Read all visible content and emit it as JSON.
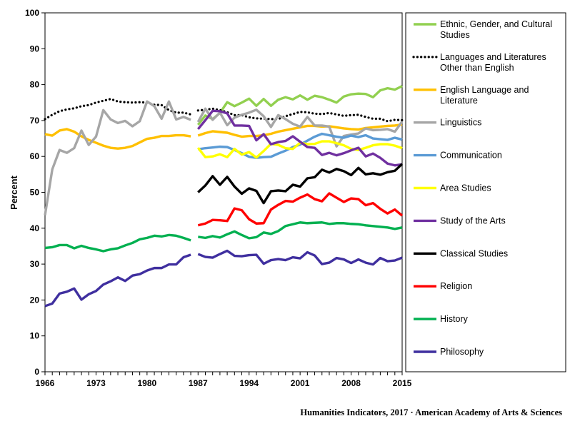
{
  "footer": "Humanities Indicators, 2017 · American Academy of Arts & Sciences",
  "chart_data": {
    "type": "line",
    "title": "",
    "xlabel": "",
    "ylabel": "Percent",
    "xlim": [
      1966,
      2015
    ],
    "ylim": [
      0,
      100
    ],
    "x_ticks": [
      1966,
      1973,
      1980,
      1987,
      1994,
      2001,
      2008,
      2015
    ],
    "y_ticks": [
      0,
      10,
      20,
      30,
      40,
      50,
      60,
      70,
      80,
      90,
      100
    ],
    "grid": false,
    "legend_position": "right",
    "series_break": [
      1986,
      1987
    ],
    "series": [
      {
        "name": "Ethnic, Gender, and Cultural Studies",
        "color": "#92d050",
        "dash": false,
        "x": [
          1987,
          1988,
          1989,
          1990,
          1991,
          1992,
          1993,
          1994,
          1995,
          1996,
          1997,
          1998,
          1999,
          2000,
          2001,
          2002,
          2003,
          2004,
          2005,
          2006,
          2007,
          2008,
          2009,
          2010,
          2011,
          2012,
          2013,
          2014,
          2015
        ],
        "y": [
          68.8,
          71.4,
          70.4,
          72.1,
          75.1,
          74.0,
          75.0,
          76.1,
          74.1,
          76.0,
          74.1,
          75.8,
          76.5,
          75.9,
          77.0,
          75.8,
          76.9,
          76.5,
          75.8,
          75.0,
          76.7,
          77.3,
          77.5,
          77.4,
          76.5,
          78.4,
          79.0,
          78.6,
          79.6
        ]
      },
      {
        "name": "Languages and Literatures Other than English",
        "color": "#000000",
        "dash": true,
        "x": [
          1966,
          1967,
          1968,
          1969,
          1970,
          1971,
          1972,
          1973,
          1974,
          1975,
          1976,
          1977,
          1978,
          1979,
          1980,
          1981,
          1982,
          1983,
          1984,
          1985,
          1986,
          1987,
          1988,
          1989,
          1990,
          1991,
          1992,
          1993,
          1994,
          1995,
          1996,
          1997,
          1998,
          1999,
          2000,
          2001,
          2002,
          2003,
          2004,
          2005,
          2006,
          2007,
          2008,
          2009,
          2010,
          2011,
          2012,
          2013,
          2014,
          2015
        ],
        "y": [
          70.4,
          71.6,
          72.6,
          73.1,
          73.4,
          74.0,
          74.3,
          75.0,
          75.5,
          76.0,
          75.3,
          75.1,
          75.0,
          75.1,
          75.0,
          74.4,
          74.3,
          72.9,
          72.2,
          72.2,
          71.7,
          72.8,
          73.0,
          73.3,
          72.9,
          72.3,
          71.5,
          71.5,
          70.9,
          70.6,
          70.5,
          70.4,
          70.4,
          71.2,
          71.8,
          72.4,
          72.3,
          71.9,
          71.8,
          72.1,
          71.7,
          71.3,
          71.5,
          71.6,
          71.0,
          70.5,
          70.5,
          69.8,
          70.2,
          70.1
        ]
      },
      {
        "name": "English Language and Literature",
        "color": "#ffc000",
        "dash": false,
        "x": [
          1966,
          1967,
          1968,
          1969,
          1970,
          1971,
          1972,
          1973,
          1974,
          1975,
          1976,
          1977,
          1978,
          1979,
          1980,
          1981,
          1982,
          1983,
          1984,
          1985,
          1986,
          1987,
          1988,
          1989,
          1990,
          1991,
          1992,
          1993,
          1994,
          1995,
          1996,
          1997,
          1998,
          1999,
          2000,
          2001,
          2002,
          2003,
          2004,
          2005,
          2006,
          2007,
          2008,
          2009,
          2010,
          2011,
          2012,
          2013,
          2014,
          2015
        ],
        "y": [
          66.2,
          65.8,
          67.2,
          67.6,
          66.9,
          65.6,
          64.6,
          63.8,
          63.0,
          62.4,
          62.2,
          62.4,
          62.9,
          63.9,
          64.9,
          65.2,
          65.7,
          65.7,
          65.9,
          65.9,
          65.6,
          65.8,
          66.5,
          67.0,
          66.8,
          66.6,
          66.0,
          65.5,
          65.7,
          65.7,
          65.9,
          66.3,
          66.9,
          67.3,
          67.7,
          68.1,
          68.5,
          68.5,
          68.3,
          68.4,
          68.1,
          67.8,
          67.6,
          67.5,
          67.9,
          68.1,
          68.3,
          68.5,
          68.6,
          68.9
        ]
      },
      {
        "name": "Linguistics",
        "color": "#a6a6a6",
        "dash": false,
        "x": [
          1966,
          1967,
          1968,
          1969,
          1970,
          1971,
          1972,
          1973,
          1974,
          1975,
          1976,
          1977,
          1978,
          1979,
          1980,
          1981,
          1982,
          1983,
          1984,
          1985,
          1986,
          1987,
          1988,
          1989,
          1990,
          1991,
          1992,
          1993,
          1994,
          1995,
          1996,
          1997,
          1998,
          1999,
          2000,
          2001,
          2002,
          2003,
          2004,
          2005,
          2006,
          2007,
          2008,
          2009,
          2010,
          2011,
          2012,
          2013,
          2014,
          2015
        ],
        "y": [
          43.6,
          56.4,
          61.8,
          61.0,
          62.3,
          67.2,
          63.2,
          65.5,
          72.9,
          70.3,
          69.3,
          69.9,
          68.4,
          69.8,
          75.3,
          74.0,
          70.5,
          75.3,
          70.3,
          71.0,
          70.2,
          69.6,
          73.3,
          70.2,
          72.2,
          68.7,
          70.8,
          71.6,
          72.2,
          73.0,
          71.2,
          68.2,
          71.5,
          70.4,
          69.1,
          68.3,
          71.0,
          68.6,
          68.6,
          68.3,
          62.8,
          65.7,
          66.1,
          66.4,
          67.8,
          67.3,
          67.4,
          67.6,
          66.9,
          69.7
        ]
      },
      {
        "name": "Communication",
        "color": "#5b9bd5",
        "dash": false,
        "x": [
          1987,
          1988,
          1989,
          1990,
          1991,
          1992,
          1993,
          1994,
          1995,
          1996,
          1997,
          1998,
          1999,
          2000,
          2001,
          2002,
          2003,
          2004,
          2005,
          2006,
          2007,
          2008,
          2009,
          2010,
          2011,
          2012,
          2013,
          2014,
          2015
        ],
        "y": [
          62.0,
          62.3,
          62.5,
          62.7,
          62.6,
          61.8,
          60.9,
          59.9,
          59.6,
          59.8,
          59.9,
          60.8,
          61.6,
          62.6,
          63.3,
          64.4,
          65.5,
          66.3,
          65.9,
          65.5,
          65.2,
          65.8,
          65.4,
          65.9,
          65.0,
          64.8,
          64.6,
          65.2,
          64.7
        ]
      },
      {
        "name": "Area Studies",
        "color": "#ffff00",
        "dash": false,
        "x": [
          1987,
          1988,
          1989,
          1990,
          1991,
          1992,
          1993,
          1994,
          1995,
          1996,
          1997,
          1998,
          1999,
          2000,
          2001,
          2002,
          2003,
          2004,
          2005,
          2006,
          2007,
          2008,
          2009,
          2010,
          2011,
          2012,
          2013,
          2014,
          2015
        ],
        "y": [
          62.4,
          59.8,
          60.0,
          60.6,
          59.8,
          62.1,
          60.5,
          61.2,
          59.7,
          61.5,
          63.5,
          63.2,
          62.3,
          62.1,
          63.8,
          63.4,
          63.5,
          64.2,
          64.2,
          63.7,
          63.1,
          62.1,
          61.8,
          62.4,
          63.1,
          63.4,
          63.4,
          63.0,
          62.3
        ]
      },
      {
        "name": "Study of the Arts",
        "color": "#7030a0",
        "dash": false,
        "x": [
          1987,
          1988,
          1989,
          1990,
          1991,
          1992,
          1993,
          1994,
          1995,
          1996,
          1997,
          1998,
          1999,
          2000,
          2001,
          2002,
          2003,
          2004,
          2005,
          2006,
          2007,
          2008,
          2009,
          2010,
          2011,
          2012,
          2013,
          2014,
          2015
        ],
        "y": [
          67.6,
          70.1,
          72.7,
          72.6,
          72.0,
          68.6,
          68.6,
          68.5,
          64.5,
          66.2,
          63.4,
          64.0,
          64.3,
          65.6,
          64.1,
          62.6,
          62.4,
          60.4,
          61.0,
          60.3,
          60.9,
          61.7,
          62.4,
          60.0,
          60.8,
          59.6,
          58.0,
          57.5,
          57.8
        ]
      },
      {
        "name": "Classical Studies",
        "color": "#000000",
        "dash": false,
        "x": [
          1987,
          1988,
          1989,
          1990,
          1991,
          1992,
          1993,
          1994,
          1995,
          1996,
          1997,
          1998,
          1999,
          2000,
          2001,
          2002,
          2003,
          2004,
          2005,
          2006,
          2007,
          2008,
          2009,
          2010,
          2011,
          2012,
          2013,
          2014,
          2015
        ],
        "y": [
          50.0,
          51.9,
          54.5,
          52.1,
          54.3,
          51.6,
          49.6,
          51.1,
          50.4,
          47.0,
          50.3,
          50.5,
          50.3,
          52.1,
          51.6,
          53.9,
          54.2,
          56.3,
          55.5,
          56.5,
          55.9,
          54.8,
          56.8,
          55.0,
          55.3,
          54.9,
          55.6,
          56.0,
          57.9
        ]
      },
      {
        "name": "Religion",
        "color": "#ff0000",
        "dash": false,
        "x": [
          1987,
          1988,
          1989,
          1990,
          1991,
          1992,
          1993,
          1994,
          1995,
          1996,
          1997,
          1998,
          1999,
          2000,
          2001,
          2002,
          2003,
          2004,
          2005,
          2006,
          2007,
          2008,
          2009,
          2010,
          2011,
          2012,
          2013,
          2014,
          2015
        ],
        "y": [
          40.8,
          41.3,
          42.3,
          42.2,
          42.0,
          45.5,
          45.0,
          42.5,
          41.3,
          41.4,
          45.2,
          46.5,
          47.6,
          47.4,
          48.5,
          49.4,
          48.1,
          47.5,
          49.7,
          48.5,
          47.3,
          48.3,
          48.1,
          46.4,
          47.0,
          45.4,
          44.1,
          45.2,
          43.5
        ]
      },
      {
        "name": "History",
        "color": "#00b050",
        "dash": false,
        "x": [
          1966,
          1967,
          1968,
          1969,
          1970,
          1971,
          1972,
          1973,
          1974,
          1975,
          1976,
          1977,
          1978,
          1979,
          1980,
          1981,
          1982,
          1983,
          1984,
          1985,
          1986,
          1987,
          1988,
          1989,
          1990,
          1991,
          1992,
          1993,
          1994,
          1995,
          1996,
          1997,
          1998,
          1999,
          2000,
          2001,
          2002,
          2003,
          2004,
          2005,
          2006,
          2007,
          2008,
          2009,
          2010,
          2011,
          2012,
          2013,
          2014,
          2015
        ],
        "y": [
          34.5,
          34.7,
          35.3,
          35.3,
          34.4,
          35.1,
          34.5,
          34.1,
          33.6,
          34.1,
          34.4,
          35.2,
          35.9,
          36.9,
          37.3,
          37.9,
          37.7,
          38.1,
          37.9,
          37.3,
          36.6,
          37.6,
          37.3,
          37.8,
          37.4,
          38.3,
          39.1,
          38.1,
          37.2,
          37.5,
          38.8,
          38.4,
          39.2,
          40.6,
          41.1,
          41.6,
          41.4,
          41.5,
          41.6,
          41.2,
          41.4,
          41.4,
          41.2,
          41.1,
          40.8,
          40.6,
          40.4,
          40.2,
          39.8,
          40.2
        ]
      },
      {
        "name": "Philosophy",
        "color": "#3f2f9f",
        "dash": false,
        "x": [
          1966,
          1967,
          1968,
          1969,
          1970,
          1971,
          1972,
          1973,
          1974,
          1975,
          1976,
          1977,
          1978,
          1979,
          1980,
          1981,
          1982,
          1983,
          1984,
          1985,
          1986,
          1987,
          1988,
          1989,
          1990,
          1991,
          1992,
          1993,
          1994,
          1995,
          1996,
          1997,
          1998,
          1999,
          2000,
          2001,
          2002,
          2003,
          2004,
          2005,
          2006,
          2007,
          2008,
          2009,
          2010,
          2011,
          2012,
          2013,
          2014,
          2015
        ],
        "y": [
          18.3,
          19.0,
          21.8,
          22.3,
          23.2,
          20.1,
          21.6,
          22.5,
          24.3,
          25.2,
          26.3,
          25.3,
          26.8,
          27.2,
          28.2,
          28.9,
          28.9,
          29.9,
          29.9,
          31.9,
          32.6,
          32.8,
          32.0,
          31.8,
          32.8,
          33.7,
          32.3,
          32.2,
          32.5,
          32.6,
          30.1,
          31.1,
          31.4,
          31.1,
          31.9,
          31.6,
          33.3,
          32.4,
          30.0,
          30.4,
          31.7,
          31.3,
          30.3,
          31.3,
          30.4,
          29.9,
          31.7,
          30.8,
          31.0,
          31.8
        ]
      }
    ]
  }
}
